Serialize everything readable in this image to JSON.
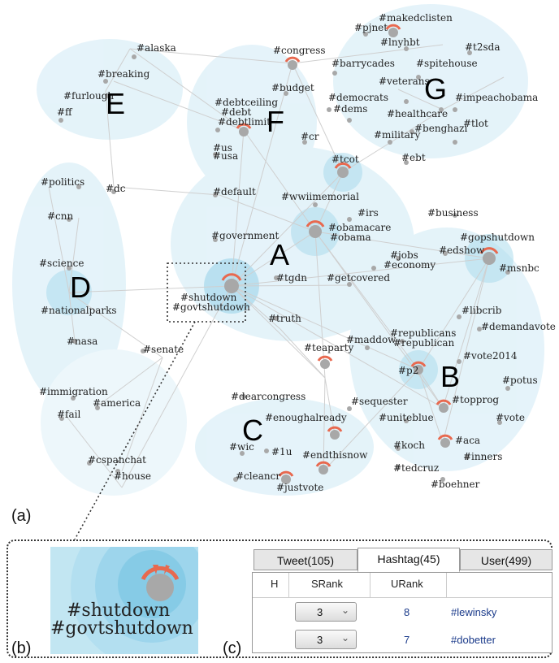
{
  "colors": {
    "node": "#a8a8a8",
    "hub_arc": "#e8694f",
    "blob": "#bfe3f1",
    "blob_core": "#8ecfe8",
    "edge": "#cfcfcf",
    "link_text": "#1a3a8a"
  },
  "clusters": [
    "A",
    "B",
    "C",
    "D",
    "E",
    "F",
    "G"
  ],
  "hashtags": [
    "#alaska",
    "#breaking",
    "#furlough",
    "#ff",
    "#congress",
    "#budget",
    "#debtceiling",
    "#debt",
    "#debtlimit",
    "#pjnet",
    "#makedclisten",
    "#lnyhbt",
    "#t2sda",
    "#barrycades",
    "#spitehouse",
    "#veterans",
    "#democrats",
    "#dems",
    "#healthcare",
    "#impeachobama",
    "#benghazi",
    "#tlot",
    "#military",
    "#cr",
    "#us",
    "#usa",
    "#ebt",
    "#tcot",
    "#politics",
    "#dc",
    "#default",
    "#wwiimemorial",
    "#cnn",
    "#irs",
    "#obamacare",
    "#obama",
    "#business",
    "#government",
    "#gopshutdown",
    "#edshow",
    "#msnbc",
    "#jobs",
    "#economy",
    "#science",
    "#tgdn",
    "#getcovered",
    "#shutdown",
    "#govtshutdown",
    "#nationalparks",
    "#truth",
    "#libcrib",
    "#demandavote",
    "#republicans",
    "#republican",
    "#nasa",
    "#senate",
    "#teaparty",
    "#maddow",
    "#vote2014",
    "#p2",
    "#potus",
    "#dearcongress",
    "#immigration",
    "#sequester",
    "#topprog",
    "#fail",
    "#america",
    "#enoughalready",
    "#uniteblue",
    "#vote",
    "#wic",
    "#1u",
    "#endthisnow",
    "#koch",
    "#aca",
    "#inners",
    "#cspanchat",
    "#house",
    "#tedcruz",
    "#cleancr",
    "#justvote",
    "#boehner"
  ],
  "panels": {
    "a": "(a)",
    "b": "(b)",
    "c": "(c)"
  },
  "zoom": {
    "line1": "#shutdown",
    "line2": "#govtshutdown"
  },
  "tabs": [
    {
      "label": "Tweet(105)",
      "active": false
    },
    {
      "label": "Hashtag(45)",
      "active": true
    },
    {
      "label": "User(499)",
      "active": false
    }
  ],
  "table": {
    "headers": [
      "H",
      "SRank",
      "URank"
    ],
    "rows": [
      {
        "srank": "3",
        "urank": "8",
        "hashtag": "#lewinsky"
      },
      {
        "srank": "3",
        "urank": "7",
        "hashtag": "#dobetter"
      }
    ]
  }
}
